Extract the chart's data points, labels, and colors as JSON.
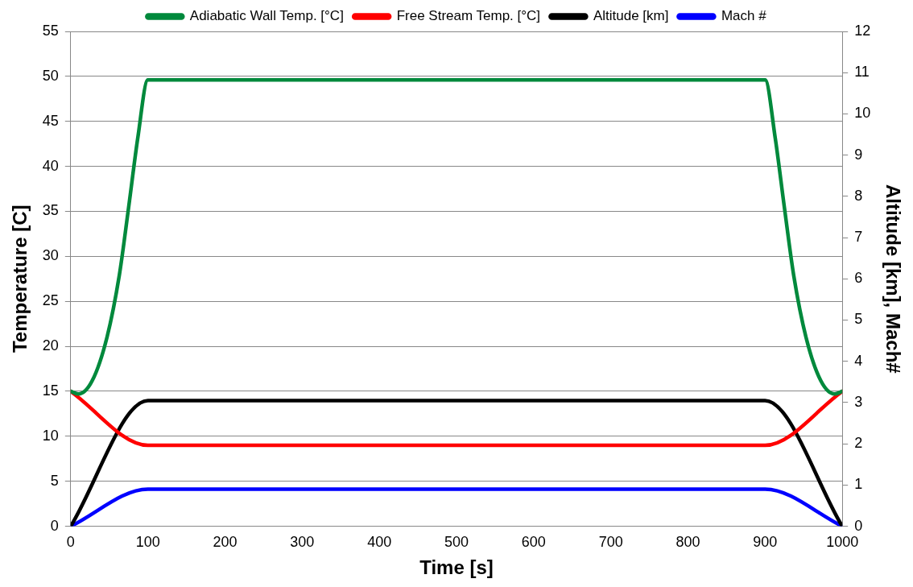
{
  "chart_data": {
    "type": "line",
    "xlabel": "Time [s]",
    "ylabel": "Temperature [C]",
    "y2label": "Altitude [km], Mach#",
    "xlim": [
      0,
      1000
    ],
    "xticks": [
      0,
      100,
      200,
      300,
      400,
      500,
      600,
      700,
      800,
      900,
      1000
    ],
    "ylim": [
      0,
      55
    ],
    "yticks": [
      0,
      5,
      10,
      15,
      20,
      25,
      30,
      35,
      40,
      45,
      50,
      55
    ],
    "y2lim": [
      0,
      12
    ],
    "y2ticks": [
      0,
      1,
      2,
      3,
      4,
      5,
      6,
      7,
      8,
      9,
      10,
      11,
      12
    ],
    "grid": "y",
    "legend": "top",
    "marker": "none",
    "line_style": "solid",
    "series": [
      {
        "name": "Adiabatic Wall Temp. [°C]",
        "color": "#00893c",
        "x": [
          0,
          10,
          28,
          47,
          63,
          75,
          87,
          100,
          900,
          913,
          925,
          937,
          953,
          972,
          990,
          1000
        ],
        "values": [
          15,
          14.7,
          16.2,
          21,
          27.9,
          35.4,
          43.2,
          49.6,
          49.6,
          43.2,
          35.4,
          27.9,
          21,
          16.2,
          14.7,
          15
        ]
      },
      {
        "name": "Free Stream Temp. [°C]",
        "color": "#ff0000",
        "x": [
          0,
          100,
          900,
          1000
        ],
        "values": [
          15,
          9,
          9,
          15
        ]
      },
      {
        "name": "Altitude [km]",
        "color": "#000000",
        "axis": "y2",
        "x": [
          0,
          100,
          900,
          1000
        ],
        "values": [
          0,
          3.05,
          3.05,
          0
        ]
      },
      {
        "name": "Mach #",
        "color": "#0000ff",
        "axis": "y2",
        "x": [
          0,
          100,
          900,
          1000
        ],
        "values": [
          0,
          0.9,
          0.9,
          0
        ]
      }
    ]
  }
}
